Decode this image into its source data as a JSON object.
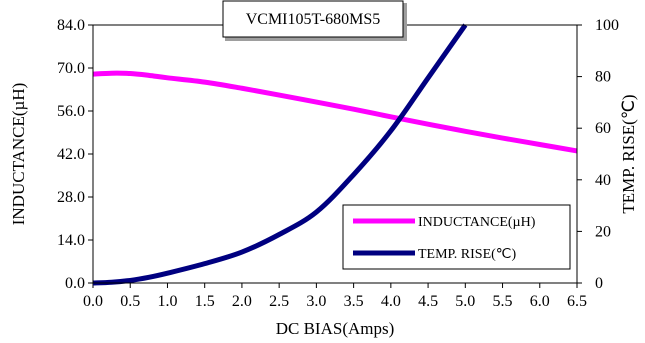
{
  "chart_data": {
    "type": "line",
    "title": "VCMI105T-680MS5",
    "xlabel": "DC BIAS(Amps)",
    "ylabel": "INDUCTANCE(µH)",
    "y2label": "TEMP. RISE(℃)",
    "xlim": [
      0,
      6.5
    ],
    "ylim": [
      0,
      84
    ],
    "y2lim": [
      0,
      100
    ],
    "x_ticks": [
      "0.0",
      "0.5",
      "1.0",
      "1.5",
      "2.0",
      "2.5",
      "3.0",
      "3.5",
      "4.0",
      "4.5",
      "5.0",
      "5.5",
      "6.0",
      "6.5"
    ],
    "y_ticks": [
      "0.0",
      "14.0",
      "28.0",
      "42.0",
      "56.0",
      "70.0",
      "84.0"
    ],
    "y2_ticks": [
      "0",
      "20",
      "40",
      "60",
      "80",
      "100"
    ],
    "grid": false,
    "legend_position": "bottom-right",
    "series": [
      {
        "name": "INDUCTANCE(µH)",
        "axis": "left",
        "color": "#ff00ff",
        "x": [
          0.0,
          0.25,
          0.5,
          0.75,
          1.0,
          1.5,
          2.0,
          2.5,
          3.0,
          3.5,
          4.0,
          4.5,
          5.0,
          5.5,
          6.0,
          6.5
        ],
        "values": [
          68.0,
          68.3,
          68.2,
          67.6,
          66.8,
          65.4,
          63.4,
          61.2,
          58.9,
          56.6,
          54.1,
          51.7,
          49.4,
          47.2,
          45.1,
          43.0
        ]
      },
      {
        "name": "TEMP. RISE(℃)",
        "axis": "right",
        "color": "#000080",
        "x": [
          0.0,
          0.25,
          0.5,
          0.75,
          1.0,
          1.5,
          2.0,
          2.5,
          3.0,
          3.5,
          4.0,
          4.5,
          5.0
        ],
        "values": [
          0,
          0.3,
          1.0,
          2.2,
          3.8,
          7.5,
          12.0,
          18.8,
          27.5,
          42.0,
          59.0,
          79.5,
          100.0
        ]
      }
    ]
  }
}
